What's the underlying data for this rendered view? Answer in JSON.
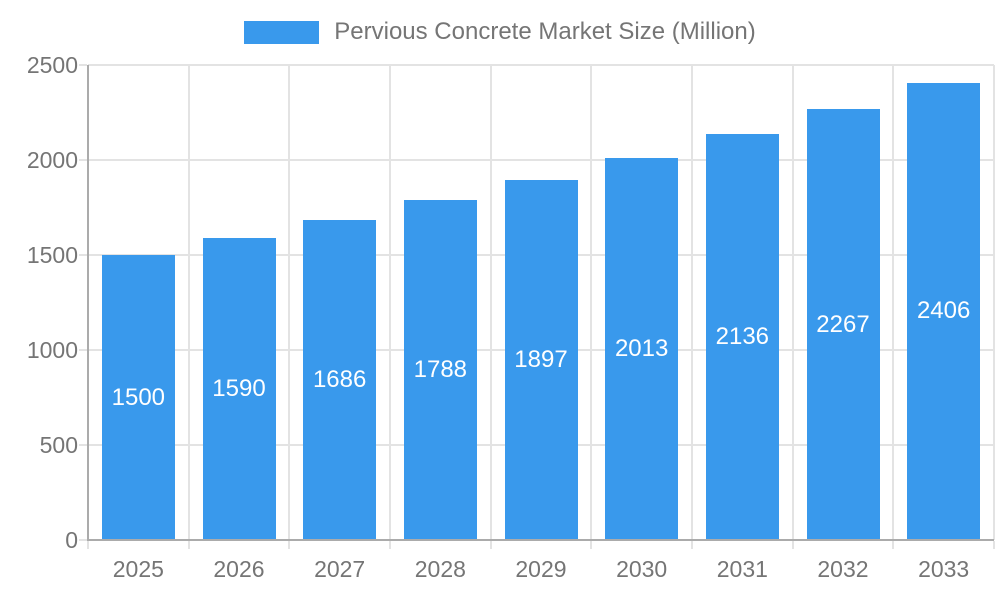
{
  "legend": {
    "label": "Pervious Concrete Market Size (Million)"
  },
  "colors": {
    "bar": "#3999EC",
    "axis_text": "#757575",
    "grid": "#E3E3E3",
    "axis_line": "#ABABAB",
    "bar_label": "#FFFFFF"
  },
  "chart_data": {
    "type": "bar",
    "title": "Pervious Concrete Market Size (Million)",
    "series_name": "Pervious Concrete Market Size (Million)",
    "categories": [
      "2025",
      "2026",
      "2027",
      "2028",
      "2029",
      "2030",
      "2031",
      "2032",
      "2033"
    ],
    "values": [
      1500,
      1590,
      1686,
      1788,
      1897,
      2013,
      2136,
      2267,
      2406
    ],
    "xlabel": "",
    "ylabel": "",
    "ylim": [
      0,
      2500
    ],
    "yticks": [
      0,
      500,
      1000,
      1500,
      2000,
      2500
    ],
    "grid": true,
    "legend_position": "top-center",
    "value_labels": "inside-center-white"
  }
}
